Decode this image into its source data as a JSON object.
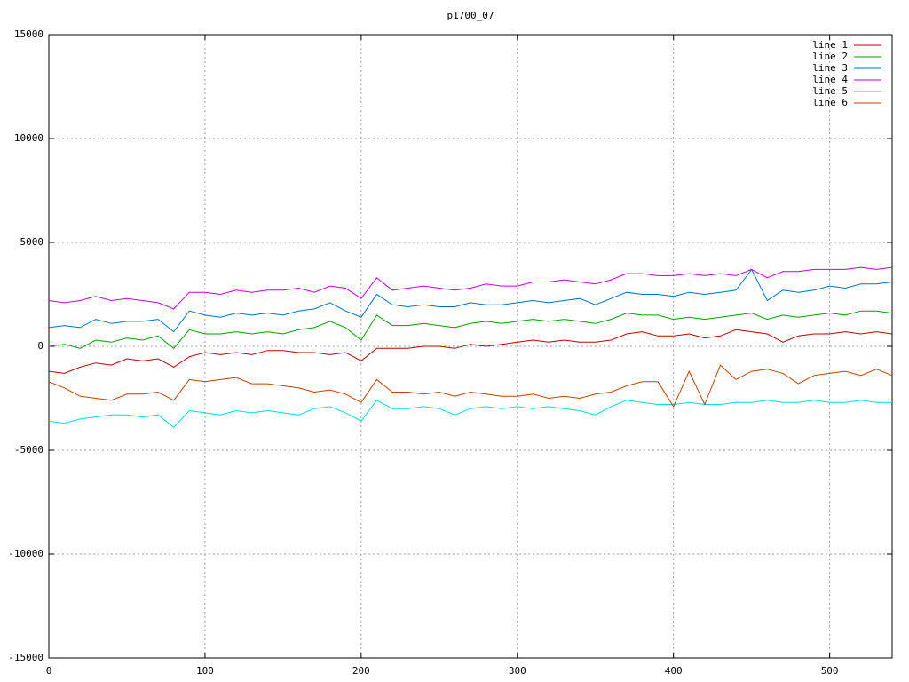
{
  "chart_data": {
    "type": "line",
    "title": "p1700_07",
    "x": [
      0,
      10,
      20,
      30,
      40,
      50,
      60,
      70,
      80,
      90,
      100,
      110,
      120,
      130,
      140,
      150,
      160,
      170,
      180,
      190,
      200,
      210,
      220,
      230,
      240,
      250,
      260,
      270,
      280,
      290,
      300,
      310,
      320,
      330,
      340,
      350,
      360,
      370,
      380,
      390,
      400,
      410,
      420,
      430,
      440,
      450,
      460,
      470,
      480,
      490,
      500,
      510,
      520,
      530,
      540
    ],
    "series": [
      {
        "name": "line 1",
        "color": "#c00000",
        "values": [
          -1200,
          -1300,
          -1000,
          -800,
          -900,
          -600,
          -700,
          -600,
          -1000,
          -500,
          -300,
          -400,
          -300,
          -400,
          -200,
          -200,
          -300,
          -300,
          -400,
          -300,
          -700,
          -100,
          -100,
          -100,
          0,
          0,
          -100,
          100,
          0,
          100,
          200,
          300,
          200,
          300,
          200,
          200,
          300,
          600,
          700,
          500,
          500,
          600,
          400,
          500,
          800,
          700,
          600,
          200,
          500,
          600,
          600,
          700,
          600,
          700,
          600
        ]
      },
      {
        "name": "line 2",
        "color": "#00a000",
        "values": [
          0,
          100,
          -100,
          300,
          200,
          400,
          300,
          500,
          -100,
          800,
          600,
          600,
          700,
          600,
          700,
          600,
          800,
          900,
          1200,
          900,
          300,
          1500,
          1000,
          1000,
          1100,
          1000,
          900,
          1100,
          1200,
          1100,
          1200,
          1300,
          1200,
          1300,
          1200,
          1100,
          1300,
          1600,
          1500,
          1500,
          1300,
          1400,
          1300,
          1400,
          1500,
          1600,
          1300,
          1500,
          1400,
          1500,
          1600,
          1500,
          1700,
          1700,
          1600
        ]
      },
      {
        "name": "line 3",
        "color": "#0070d0",
        "values": [
          900,
          1000,
          900,
          1300,
          1100,
          1200,
          1200,
          1300,
          700,
          1700,
          1500,
          1400,
          1600,
          1500,
          1600,
          1500,
          1700,
          1800,
          2100,
          1700,
          1400,
          2500,
          2000,
          1900,
          2000,
          1900,
          1900,
          2100,
          2000,
          2000,
          2100,
          2200,
          2100,
          2200,
          2300,
          2000,
          2300,
          2600,
          2500,
          2500,
          2400,
          2600,
          2500,
          2600,
          2700,
          3700,
          2200,
          2700,
          2600,
          2700,
          2900,
          2800,
          3000,
          3000,
          3100
        ]
      },
      {
        "name": "line 4",
        "color": "#c000e0",
        "values": [
          2200,
          2100,
          2200,
          2400,
          2200,
          2300,
          2200,
          2100,
          1800,
          2600,
          2600,
          2500,
          2700,
          2600,
          2700,
          2700,
          2800,
          2600,
          2900,
          2800,
          2300,
          3300,
          2700,
          2800,
          2900,
          2800,
          2700,
          2800,
          3000,
          2900,
          2900,
          3100,
          3100,
          3200,
          3100,
          3000,
          3200,
          3500,
          3500,
          3400,
          3400,
          3500,
          3400,
          3500,
          3400,
          3700,
          3300,
          3600,
          3600,
          3700,
          3700,
          3700,
          3800,
          3700,
          3800
        ]
      },
      {
        "name": "line 5",
        "color": "#00dddd",
        "values": [
          -3600,
          -3700,
          -3500,
          -3400,
          -3300,
          -3300,
          -3400,
          -3300,
          -3900,
          -3100,
          -3200,
          -3300,
          -3100,
          -3200,
          -3100,
          -3200,
          -3300,
          -3000,
          -2900,
          -3200,
          -3600,
          -2600,
          -3000,
          -3000,
          -2900,
          -3000,
          -3300,
          -3000,
          -2900,
          -3000,
          -2900,
          -3000,
          -2900,
          -3000,
          -3100,
          -3300,
          -2900,
          -2600,
          -2700,
          -2800,
          -2800,
          -2700,
          -2800,
          -2800,
          -2700,
          -2700,
          -2600,
          -2700,
          -2700,
          -2600,
          -2700,
          -2700,
          -2600,
          -2700,
          -2700
        ]
      },
      {
        "name": "line 6",
        "color": "#c04000",
        "values": [
          -1700,
          -2000,
          -2400,
          -2500,
          -2600,
          -2300,
          -2300,
          -2200,
          -2600,
          -1600,
          -1700,
          -1600,
          -1500,
          -1800,
          -1800,
          -1900,
          -2000,
          -2200,
          -2100,
          -2300,
          -2700,
          -1600,
          -2200,
          -2200,
          -2300,
          -2200,
          -2400,
          -2200,
          -2300,
          -2400,
          -2400,
          -2300,
          -2500,
          -2400,
          -2500,
          -2300,
          -2200,
          -1900,
          -1700,
          -1700,
          -2900,
          -1200,
          -2800,
          -900,
          -1600,
          -1200,
          -1100,
          -1300,
          -1800,
          -1400,
          -1300,
          -1200,
          -1400,
          -1100,
          -1400
        ]
      }
    ],
    "xlim": [
      0,
      540
    ],
    "xticks": [
      0,
      100,
      200,
      300,
      400,
      500
    ],
    "ylim": [
      -15000,
      15000
    ],
    "yticks": [
      -15000,
      -10000,
      -5000,
      0,
      5000,
      10000,
      15000
    ],
    "grid": true,
    "legend": "top right"
  }
}
